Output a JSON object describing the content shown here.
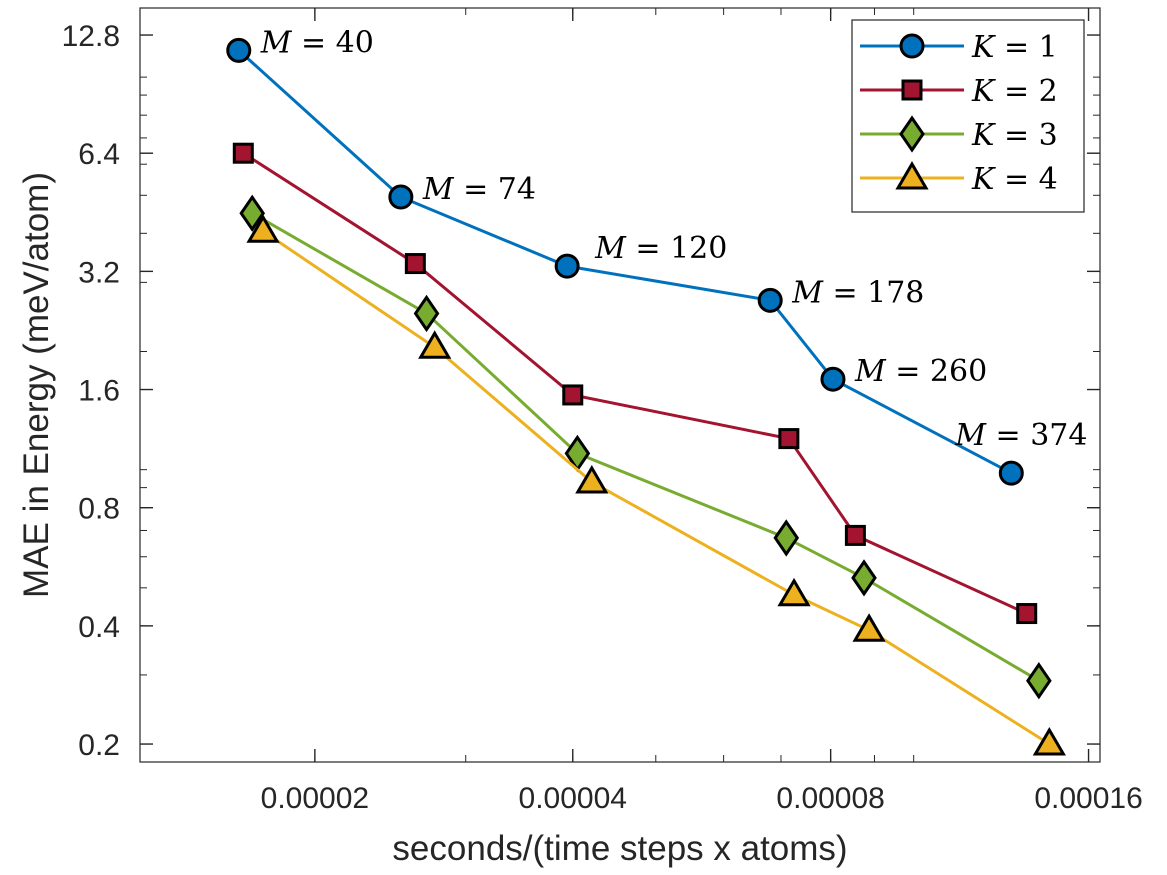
{
  "chart_data": {
    "type": "line",
    "title": "",
    "xlabel": "seconds/(time steps x atoms)",
    "ylabel": "MAE in Energy (meV/atom)",
    "xscale": "log",
    "yscale": "log",
    "xlim": [
      1.25e-05,
      0.000165
    ],
    "ylim": [
      0.18,
      15.0
    ],
    "xticks": [
      2e-05,
      4e-05,
      8e-05,
      0.00016
    ],
    "xtick_labels": [
      "0.00002",
      "0.00004",
      "0.00008",
      "0.00016"
    ],
    "yticks": [
      0.2,
      0.4,
      0.8,
      1.6,
      3.2,
      6.4,
      12.8
    ],
    "ytick_labels": [
      "0.2",
      "0.4",
      "0.8",
      "1.6",
      "3.2",
      "6.4",
      "12.8"
    ],
    "grid": false,
    "legend_position": "top-right",
    "series": [
      {
        "name": "K = 1",
        "legend_var": "K",
        "legend_val": "1",
        "color": "#0072BD",
        "marker": "circle",
        "x": [
          1.63e-05,
          2.52e-05,
          3.94e-05,
          6.8e-05,
          8.05e-05,
          0.00013
        ],
        "y": [
          11.7,
          4.95,
          3.3,
          2.7,
          1.7,
          0.98
        ]
      },
      {
        "name": "K = 2",
        "legend_var": "K",
        "legend_val": "2",
        "color": "#A2142F",
        "marker": "square",
        "x": [
          1.65e-05,
          2.62e-05,
          4e-05,
          7.15e-05,
          8.55e-05,
          0.0001355
        ],
        "y": [
          6.4,
          3.35,
          1.55,
          1.2,
          0.68,
          0.43
        ]
      },
      {
        "name": "K = 3",
        "legend_var": "K",
        "legend_val": "3",
        "color": "#77AC30",
        "marker": "diamond",
        "x": [
          1.69e-05,
          2.7e-05,
          4.05e-05,
          7.1e-05,
          8.75e-05,
          0.00014
        ],
        "y": [
          4.5,
          2.5,
          1.1,
          0.67,
          0.53,
          0.29
        ]
      },
      {
        "name": "K = 4",
        "legend_var": "K",
        "legend_val": "4",
        "color": "#EDB120",
        "marker": "triangle",
        "x": [
          1.74e-05,
          2.76e-05,
          4.21e-05,
          7.25e-05,
          8.87e-05,
          0.000144
        ],
        "y": [
          4.05,
          2.05,
          0.93,
          0.48,
          0.39,
          0.2
        ]
      }
    ],
    "annotations": [
      {
        "var": "M",
        "val": "40",
        "x": 1.63e-05,
        "y": 11.7
      },
      {
        "var": "M",
        "val": "74",
        "x": 2.52e-05,
        "y": 4.95
      },
      {
        "var": "M",
        "val": "120",
        "x": 3.94e-05,
        "y": 3.3
      },
      {
        "var": "M",
        "val": "178",
        "x": 6.8e-05,
        "y": 2.7
      },
      {
        "var": "M",
        "val": "260",
        "x": 8.05e-05,
        "y": 1.7
      },
      {
        "var": "M",
        "val": "374",
        "x": 0.00013,
        "y": 0.98
      }
    ]
  }
}
